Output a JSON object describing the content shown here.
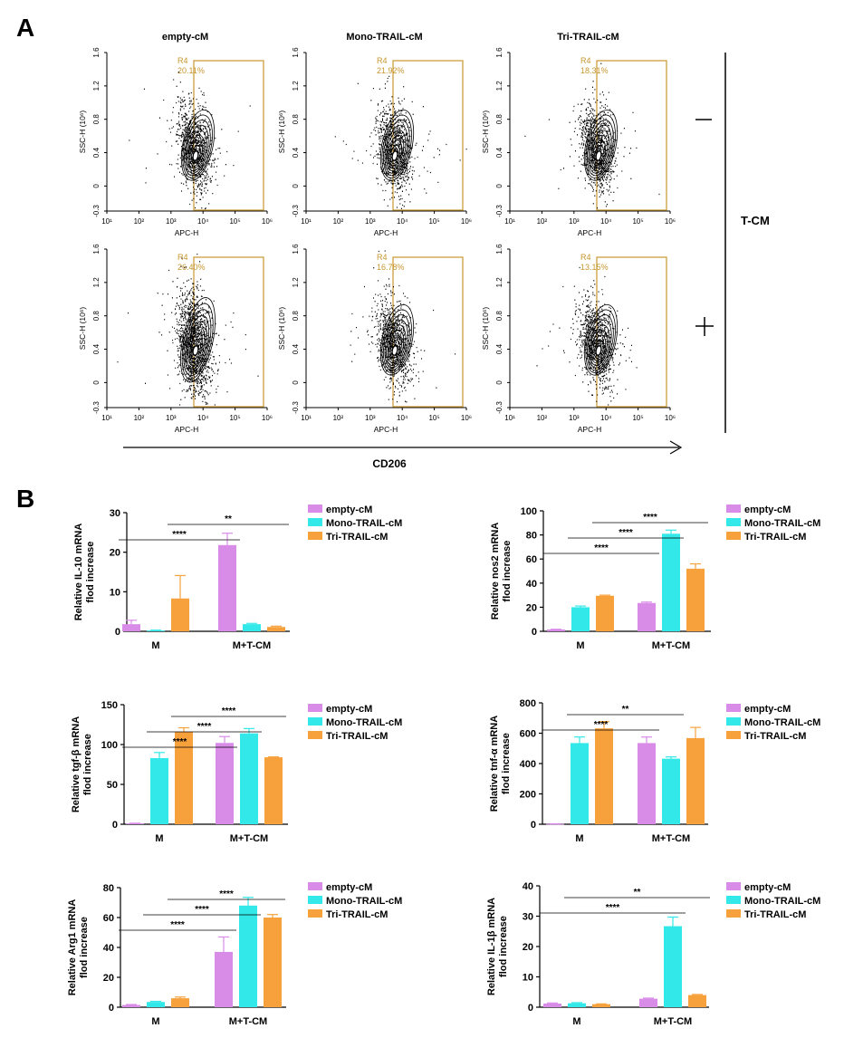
{
  "panel_labels": {
    "a": "A",
    "b": "B"
  },
  "flow": {
    "columns": [
      "empty-cM",
      "Mono-TRAIL-cM",
      "Tri-TRAIL-cM"
    ],
    "row_labels": [
      "—",
      "+"
    ],
    "group_label": "T-CM",
    "arrow_label": "CD206",
    "gate_name": "R4",
    "xlabel": "APC-H",
    "ylabel": "SSC-H (10⁶)",
    "x_ticks": [
      "10¹",
      "10²",
      "10³",
      "10⁴",
      "10⁵",
      "10⁶"
    ],
    "y_ticks": [
      "-0.3",
      "0",
      "0.4",
      "0.8",
      "1.2",
      "1.6"
    ],
    "percentages": [
      [
        "20.11%",
        "21.92%",
        "18.31%"
      ],
      [
        "26.40%",
        "16.78%",
        "13.15%"
      ]
    ]
  },
  "chart_data": [
    {
      "type": "bar",
      "ylabel": "Relative IL-10 mRNA flod increase",
      "ylim": [
        0,
        30
      ],
      "yticks": [
        0,
        10,
        20,
        30
      ],
      "categories": [
        "M",
        "M+T-CM"
      ],
      "series": [
        {
          "name": "empty-cM",
          "color": "#d98be8",
          "values": [
            1.8,
            21.8
          ],
          "errors": [
            1.0,
            3.0
          ]
        },
        {
          "name": "Mono-TRAIL-cM",
          "color": "#33e8e8",
          "values": [
            0.2,
            1.8
          ],
          "errors": [
            0.1,
            0.2
          ]
        },
        {
          "name": "Tri-TRAIL-cM",
          "color": "#f7a13c",
          "values": [
            8.3,
            1.1
          ],
          "errors": [
            5.8,
            0.2
          ]
        }
      ],
      "significance": [
        {
          "from": [
            0,
            0
          ],
          "to": [
            1,
            0
          ],
          "label": "****",
          "level": 0
        },
        {
          "from": [
            0,
            2
          ],
          "to": [
            1,
            2
          ],
          "label": "**",
          "level": 1
        }
      ]
    },
    {
      "type": "bar",
      "ylabel": "Relative nos2 mRNA flod increase",
      "ylim": [
        0,
        100
      ],
      "yticks": [
        0,
        20,
        40,
        60,
        80,
        100
      ],
      "categories": [
        "M",
        "M+T-CM"
      ],
      "series": [
        {
          "name": "empty-cM",
          "color": "#d98be8",
          "values": [
            1.5,
            23.5
          ],
          "errors": [
            0.2,
            0.8
          ]
        },
        {
          "name": "Mono-TRAIL-cM",
          "color": "#33e8e8",
          "values": [
            20.0,
            81.0
          ],
          "errors": [
            1.0,
            3.0
          ]
        },
        {
          "name": "Tri-TRAIL-cM",
          "color": "#f7a13c",
          "values": [
            29.5,
            52.0
          ],
          "errors": [
            0.5,
            4.0
          ]
        }
      ],
      "significance": [
        {
          "from": [
            0,
            0
          ],
          "to": [
            1,
            0
          ],
          "label": "****",
          "level": 0
        },
        {
          "from": [
            0,
            1
          ],
          "to": [
            1,
            1
          ],
          "label": "****",
          "level": 1
        },
        {
          "from": [
            0,
            2
          ],
          "to": [
            1,
            2
          ],
          "label": "****",
          "level": 2
        }
      ]
    },
    {
      "type": "bar",
      "ylabel": "Relative tgf-β mRNA flod increase",
      "ylim": [
        0,
        150
      ],
      "yticks": [
        0,
        50,
        100,
        150
      ],
      "categories": [
        "M",
        "M+T-CM"
      ],
      "series": [
        {
          "name": "empty-cM",
          "color": "#d98be8",
          "values": [
            1.0,
            102.0
          ],
          "errors": [
            0.3,
            8.0
          ]
        },
        {
          "name": "Mono-TRAIL-cM",
          "color": "#33e8e8",
          "values": [
            83.0,
            114.0
          ],
          "errors": [
            7.0,
            6.0
          ]
        },
        {
          "name": "Tri-TRAIL-cM",
          "color": "#f7a13c",
          "values": [
            116.0,
            84.0
          ],
          "errors": [
            5.0,
            0.5
          ]
        }
      ],
      "significance": [
        {
          "from": [
            0,
            0
          ],
          "to": [
            1,
            0
          ],
          "label": "****",
          "level": 0
        },
        {
          "from": [
            0,
            1
          ],
          "to": [
            1,
            1
          ],
          "label": "****",
          "level": 1
        },
        {
          "from": [
            0,
            2
          ],
          "to": [
            1,
            2
          ],
          "label": "****",
          "level": 2
        }
      ]
    },
    {
      "type": "bar",
      "ylabel": "Relative tnf-α mRNA flod increase",
      "ylim": [
        0,
        800
      ],
      "yticks": [
        0,
        200,
        400,
        600,
        800
      ],
      "categories": [
        "M",
        "M+T-CM"
      ],
      "series": [
        {
          "name": "empty-cM",
          "color": "#d98be8",
          "values": [
            2,
            535
          ],
          "errors": [
            1,
            40
          ]
        },
        {
          "name": "Mono-TRAIL-cM",
          "color": "#33e8e8",
          "values": [
            535,
            432
          ],
          "errors": [
            40,
            12
          ]
        },
        {
          "name": "Tri-TRAIL-cM",
          "color": "#f7a13c",
          "values": [
            632,
            568
          ],
          "errors": [
            45,
            70
          ]
        }
      ],
      "significance": [
        {
          "from": [
            0,
            0
          ],
          "to": [
            1,
            0
          ],
          "label": "****",
          "level": 0
        },
        {
          "from": [
            0,
            1
          ],
          "to": [
            1,
            1
          ],
          "label": "**",
          "level": 1
        }
      ]
    },
    {
      "type": "bar",
      "ylabel": "Relative Arg1 mRNA flod increase",
      "ylim": [
        0,
        80
      ],
      "yticks": [
        0,
        20,
        40,
        60,
        80
      ],
      "categories": [
        "M",
        "M+T-CM"
      ],
      "series": [
        {
          "name": "empty-cM",
          "color": "#d98be8",
          "values": [
            1.5,
            37.0
          ],
          "errors": [
            0.3,
            10.0
          ]
        },
        {
          "name": "Mono-TRAIL-cM",
          "color": "#33e8e8",
          "values": [
            3.5,
            68.0
          ],
          "errors": [
            0.4,
            5.5
          ]
        },
        {
          "name": "Tri-TRAIL-cM",
          "color": "#f7a13c",
          "values": [
            6.0,
            60.0
          ],
          "errors": [
            0.8,
            2.0
          ]
        }
      ],
      "significance": [
        {
          "from": [
            0,
            0
          ],
          "to": [
            1,
            0
          ],
          "label": "****",
          "level": 0
        },
        {
          "from": [
            0,
            1
          ],
          "to": [
            1,
            1
          ],
          "label": "****",
          "level": 1
        },
        {
          "from": [
            0,
            2
          ],
          "to": [
            1,
            2
          ],
          "label": "****",
          "level": 2
        }
      ]
    },
    {
      "type": "bar",
      "ylabel": "Relative IL-1β mRNA flod increase",
      "ylim": [
        0,
        40
      ],
      "yticks": [
        0,
        10,
        20,
        30,
        40
      ],
      "categories": [
        "M",
        "M+T-CM"
      ],
      "series": [
        {
          "name": "empty-cM",
          "color": "#d98be8",
          "values": [
            1.2,
            2.8
          ],
          "errors": [
            0.2,
            0.2
          ]
        },
        {
          "name": "Mono-TRAIL-cM",
          "color": "#33e8e8",
          "values": [
            1.3,
            26.7
          ],
          "errors": [
            0.2,
            3.0
          ]
        },
        {
          "name": "Tri-TRAIL-cM",
          "color": "#f7a13c",
          "values": [
            1.0,
            4.0
          ],
          "errors": [
            0.1,
            0.2
          ]
        }
      ],
      "significance": [
        {
          "from": [
            0,
            0
          ],
          "to": [
            1,
            1
          ],
          "label": "****",
          "level": 0
        },
        {
          "from": [
            0,
            1
          ],
          "to": [
            1,
            2
          ],
          "label": "**",
          "level": 1
        }
      ]
    }
  ]
}
